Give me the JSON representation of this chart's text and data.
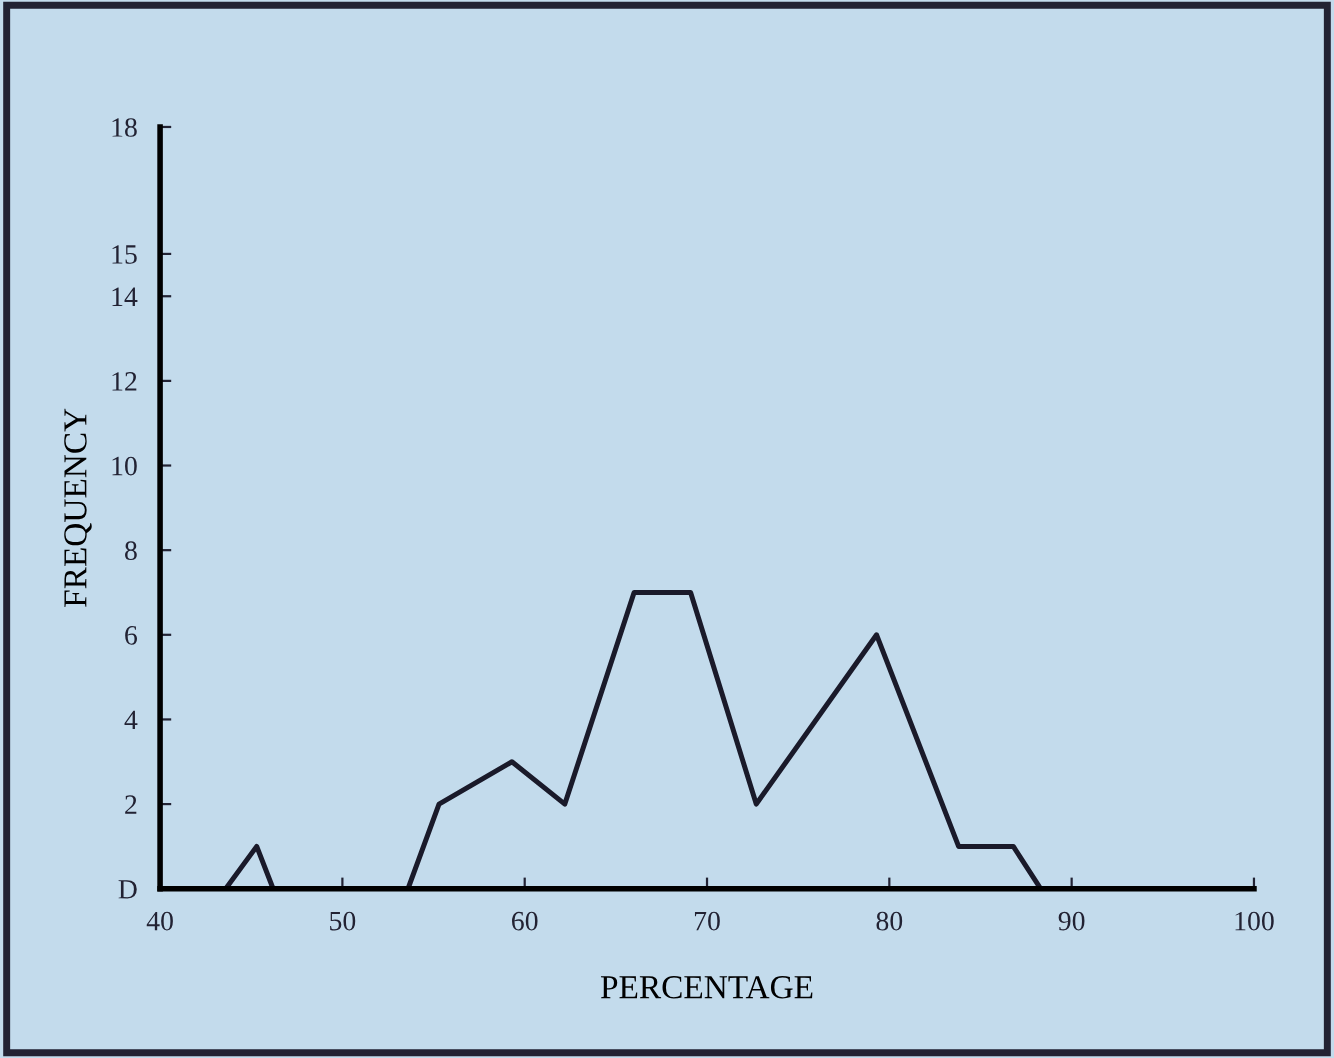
{
  "chart_data": {
    "type": "line",
    "xlabel": "PERCENTAGE",
    "ylabel": "FREQUENCY",
    "x": [
      43.6,
      45.3,
      46.2,
      53.6,
      55.3,
      59.3,
      62.2,
      66.0,
      69.1,
      72.7,
      79.3,
      83.8,
      86.8,
      88.3
    ],
    "series": [
      {
        "color": "#1a1a2a",
        "values": [
          0,
          1,
          0,
          0,
          2,
          3,
          2,
          7,
          7,
          2,
          6,
          1,
          1,
          0
        ]
      }
    ],
    "xlim": [
      40,
      100
    ],
    "xticks": [
      40,
      50,
      60,
      70,
      80,
      90,
      100
    ],
    "ylim": [
      0,
      18
    ],
    "yticks": [
      {
        "value": 0,
        "label": "D"
      },
      2,
      4,
      6,
      8,
      10,
      12,
      14,
      15,
      18
    ],
    "grid": false,
    "marker": "none",
    "line_style": "solid"
  }
}
